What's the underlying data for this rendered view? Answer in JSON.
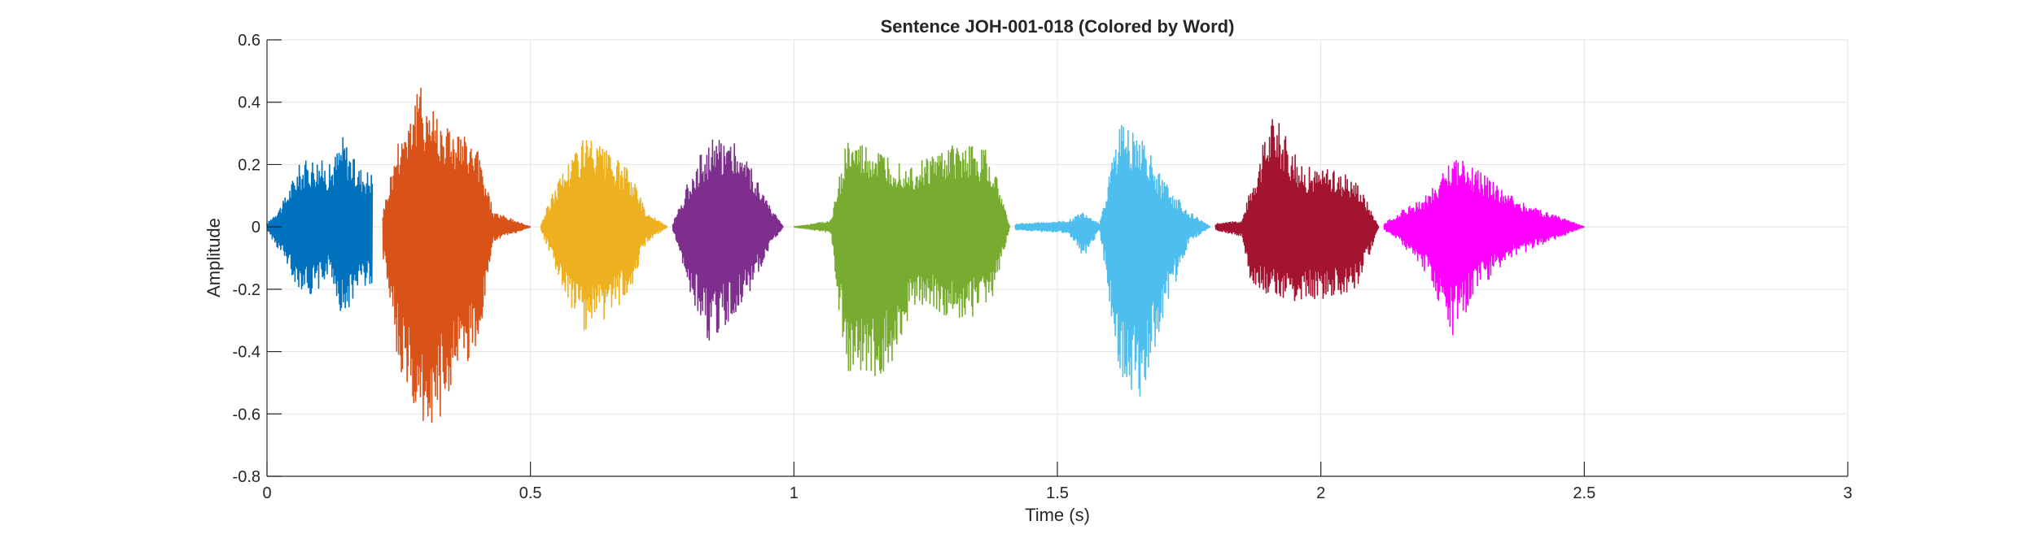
{
  "chart_data": {
    "type": "line",
    "title": "Sentence JOH-001-018 (Colored by Word)",
    "xlabel": "Time (s)",
    "ylabel": "Amplitude",
    "xlim": [
      0,
      3
    ],
    "ylim": [
      -0.8,
      0.6
    ],
    "xticks": [
      0,
      0.5,
      1,
      1.5,
      2,
      2.5,
      3
    ],
    "xtick_labels": [
      "0",
      "0.5",
      "1",
      "1.5",
      "2",
      "2.5",
      "3"
    ],
    "yticks": [
      -0.8,
      -0.6,
      -0.4,
      -0.2,
      0,
      0.2,
      0.4,
      0.6
    ],
    "ytick_labels": [
      "-0.8",
      "-0.6",
      "-0.4",
      "-0.2",
      "0",
      "0.2",
      "0.4",
      "0.6"
    ],
    "grid": true,
    "series": [
      {
        "color": "#0072BD",
        "start": 0.0,
        "end": 0.2,
        "envelope": [
          [
            0.0,
            0.01,
            -0.01
          ],
          [
            0.03,
            0.08,
            -0.1
          ],
          [
            0.06,
            0.2,
            -0.2
          ],
          [
            0.09,
            0.23,
            -0.22
          ],
          [
            0.12,
            0.2,
            -0.15
          ],
          [
            0.145,
            0.3,
            -0.31
          ],
          [
            0.17,
            0.2,
            -0.2
          ],
          [
            0.2,
            0.18,
            -0.18
          ]
        ]
      },
      {
        "color": "#D95319",
        "start": 0.22,
        "end": 0.5,
        "envelope": [
          [
            0.22,
            0.05,
            -0.1
          ],
          [
            0.25,
            0.3,
            -0.45
          ],
          [
            0.29,
            0.46,
            -0.68
          ],
          [
            0.33,
            0.36,
            -0.62
          ],
          [
            0.37,
            0.3,
            -0.45
          ],
          [
            0.4,
            0.25,
            -0.4
          ],
          [
            0.43,
            0.05,
            -0.05
          ],
          [
            0.5,
            0.0,
            0.0
          ]
        ]
      },
      {
        "color": "#EDB120",
        "start": 0.52,
        "end": 0.76,
        "envelope": [
          [
            0.52,
            0.01,
            -0.01
          ],
          [
            0.55,
            0.15,
            -0.15
          ],
          [
            0.6,
            0.3,
            -0.35
          ],
          [
            0.64,
            0.25,
            -0.32
          ],
          [
            0.69,
            0.18,
            -0.2
          ],
          [
            0.72,
            0.05,
            -0.05
          ],
          [
            0.76,
            0.0,
            0.0
          ]
        ]
      },
      {
        "color": "#7E2F8E",
        "start": 0.77,
        "end": 0.98,
        "envelope": [
          [
            0.77,
            0.01,
            -0.01
          ],
          [
            0.81,
            0.2,
            -0.25
          ],
          [
            0.84,
            0.28,
            -0.38
          ],
          [
            0.88,
            0.3,
            -0.3
          ],
          [
            0.92,
            0.2,
            -0.2
          ],
          [
            0.95,
            0.08,
            -0.08
          ],
          [
            0.98,
            0.0,
            0.0
          ]
        ]
      },
      {
        "color": "#77AC30",
        "start": 1.0,
        "end": 1.41,
        "envelope": [
          [
            1.0,
            0.0,
            0.0
          ],
          [
            1.07,
            0.02,
            -0.02
          ],
          [
            1.1,
            0.28,
            -0.5
          ],
          [
            1.15,
            0.25,
            -0.5
          ],
          [
            1.19,
            0.22,
            -0.45
          ],
          [
            1.23,
            0.2,
            -0.25
          ],
          [
            1.28,
            0.25,
            -0.28
          ],
          [
            1.32,
            0.27,
            -0.3
          ],
          [
            1.37,
            0.25,
            -0.28
          ],
          [
            1.41,
            0.0,
            0.0
          ]
        ]
      },
      {
        "color": "#4DBEEE",
        "start": 1.42,
        "end": 1.79,
        "envelope": [
          [
            1.42,
            0.01,
            -0.01
          ],
          [
            1.52,
            0.02,
            -0.02
          ],
          [
            1.55,
            0.05,
            -0.1
          ],
          [
            1.58,
            0.01,
            -0.01
          ],
          [
            1.62,
            0.35,
            -0.5
          ],
          [
            1.66,
            0.3,
            -0.55
          ],
          [
            1.7,
            0.15,
            -0.3
          ],
          [
            1.75,
            0.05,
            -0.05
          ],
          [
            1.79,
            0.0,
            0.0
          ]
        ]
      },
      {
        "color": "#A2142F",
        "start": 1.8,
        "end": 2.11,
        "envelope": [
          [
            1.8,
            0.01,
            -0.01
          ],
          [
            1.85,
            0.02,
            -0.03
          ],
          [
            1.87,
            0.15,
            -0.2
          ],
          [
            1.91,
            0.38,
            -0.23
          ],
          [
            1.96,
            0.2,
            -0.25
          ],
          [
            2.03,
            0.18,
            -0.22
          ],
          [
            2.07,
            0.15,
            -0.2
          ],
          [
            2.11,
            0.0,
            0.0
          ]
        ]
      },
      {
        "color": "#FF00FF",
        "start": 2.12,
        "end": 2.5,
        "envelope": [
          [
            2.12,
            0.01,
            -0.01
          ],
          [
            2.15,
            0.05,
            -0.05
          ],
          [
            2.2,
            0.1,
            -0.15
          ],
          [
            2.25,
            0.23,
            -0.35
          ],
          [
            2.3,
            0.18,
            -0.2
          ],
          [
            2.36,
            0.1,
            -0.1
          ],
          [
            2.43,
            0.05,
            -0.05
          ],
          [
            2.5,
            0.0,
            0.0
          ]
        ]
      }
    ]
  }
}
